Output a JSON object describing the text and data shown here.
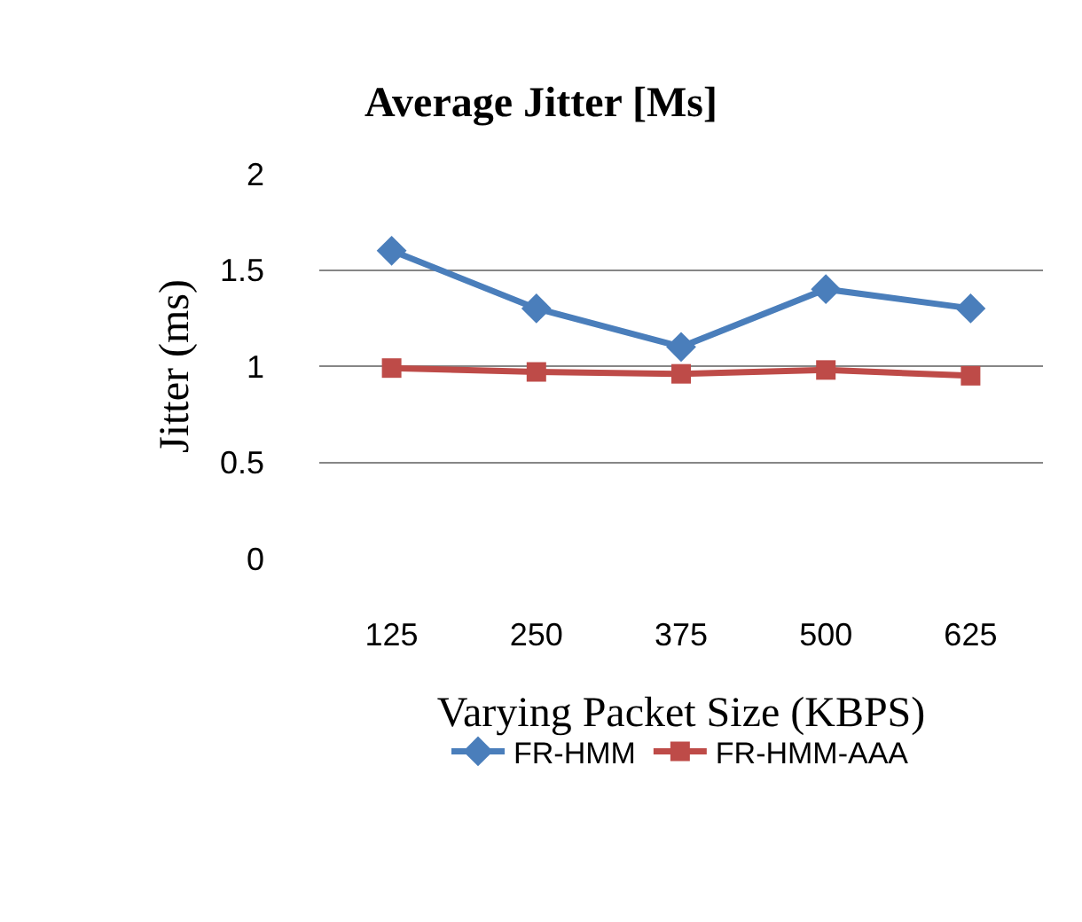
{
  "chart_data": {
    "type": "line",
    "title": "Average Jitter [Ms]",
    "xlabel": "Varying Packet Size (KBPS)",
    "ylabel": "Jitter (ms)",
    "categories": [
      "125",
      "250",
      "375",
      "500",
      "625"
    ],
    "series": [
      {
        "name": "FR-HMM",
        "color": "#4a7ebb",
        "marker": "diamond",
        "values": [
          1.6,
          1.3,
          1.1,
          1.4,
          1.3
        ]
      },
      {
        "name": "FR-HMM-AAA",
        "color": "#be4b48",
        "marker": "square",
        "values": [
          0.99,
          0.97,
          0.96,
          0.98,
          0.95
        ]
      }
    ],
    "ylim": [
      0,
      2
    ],
    "yticks": [
      0,
      0.5,
      1,
      1.5,
      2
    ],
    "grid": "y",
    "legend": "bottom",
    "line_style": "solid"
  }
}
